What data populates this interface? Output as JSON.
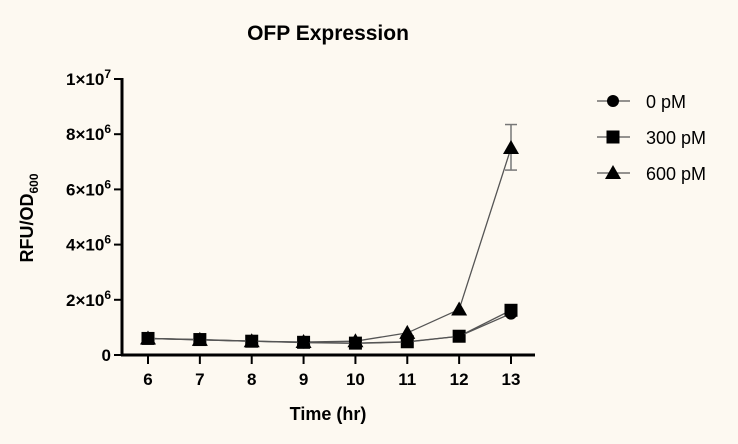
{
  "chart_data": {
    "type": "line",
    "title": "OFP Expression",
    "xlabel": "Time (hr)",
    "ylabel": "RFU/OD",
    "ylabel_subscript": "600",
    "x": [
      6,
      7,
      8,
      9,
      10,
      11,
      12,
      13
    ],
    "xlim": [
      5.6,
      13.6
    ],
    "ylim": [
      0,
      10000000
    ],
    "yticks": [
      {
        "value": 0,
        "base": "0",
        "exp": ""
      },
      {
        "value": 2000000,
        "base": "2×10",
        "exp": "6"
      },
      {
        "value": 4000000,
        "base": "4×10",
        "exp": "6"
      },
      {
        "value": 6000000,
        "base": "6×10",
        "exp": "6"
      },
      {
        "value": 8000000,
        "base": "8×10",
        "exp": "6"
      },
      {
        "value": 10000000,
        "base": "1×10",
        "exp": "7"
      }
    ],
    "grid": false,
    "legend_position": "right",
    "series": [
      {
        "name": "0 pM",
        "marker": "circle",
        "values": [
          600000,
          550000,
          500000,
          450000,
          420000,
          470000,
          680000,
          1500000
        ]
      },
      {
        "name": "300 pM",
        "marker": "square",
        "values": [
          600000,
          560000,
          500000,
          460000,
          430000,
          480000,
          680000,
          1620000
        ]
      },
      {
        "name": "600 pM",
        "marker": "triangle",
        "values": [
          600000,
          550000,
          500000,
          470000,
          500000,
          800000,
          1650000,
          7500000
        ],
        "error": [
          [
            13,
            6700000,
            8350000
          ]
        ]
      }
    ]
  }
}
